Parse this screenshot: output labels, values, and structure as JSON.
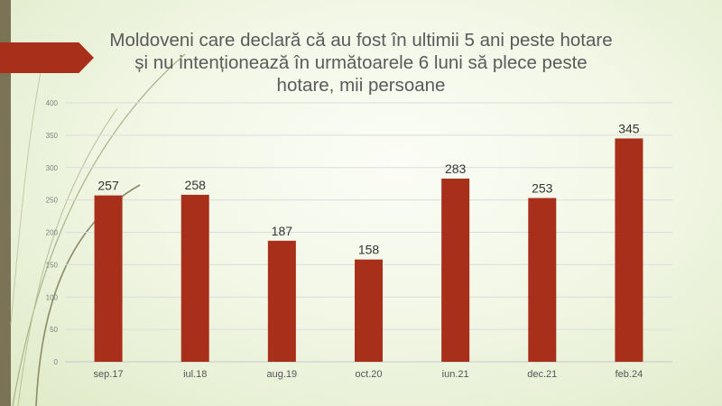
{
  "slide": {
    "colors": {
      "band": "#7a7355",
      "accent": "#a8301a",
      "bar": "#a8301a"
    }
  },
  "chart_data": {
    "type": "bar",
    "title": "Moldoveni care declară că au fost în ultimii 5 ani peste hotare și nu intenționează în următoarele 6 luni să plece peste hotare, mii persoane",
    "categories": [
      "sep.17",
      "iul.18",
      "aug.19",
      "oct.20",
      "iun.21",
      "dec.21",
      "feb.24"
    ],
    "series": [
      {
        "values": [
          257,
          258,
          187,
          158,
          283,
          253,
          345
        ]
      }
    ],
    "xlabel": "",
    "ylabel": "",
    "ylim": [
      0,
      400
    ],
    "yticks": [
      0,
      50,
      100,
      150,
      200,
      250,
      300,
      350,
      400
    ],
    "data_labels": true,
    "grid": true,
    "legend": "none"
  }
}
